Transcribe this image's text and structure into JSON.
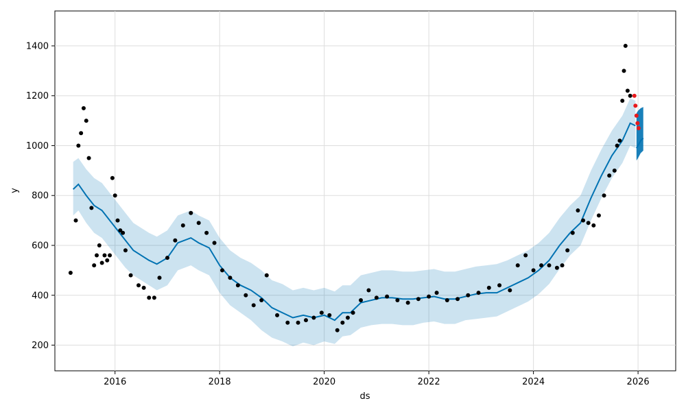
{
  "chart_data": {
    "type": "line",
    "title": "",
    "xlabel": "ds",
    "ylabel": "y",
    "xlim": [
      2014.85,
      2026.72
    ],
    "ylim": [
      97,
      1540
    ],
    "x_ticks": [
      2016,
      2018,
      2020,
      2022,
      2024,
      2026
    ],
    "x_tick_labels": [
      "2016",
      "2018",
      "2020",
      "2022",
      "2024",
      "2026"
    ],
    "y_ticks": [
      200,
      400,
      600,
      800,
      1000,
      1200,
      1400
    ],
    "y_tick_labels": [
      "200",
      "400",
      "600",
      "800",
      "1000",
      "1200",
      "1400"
    ],
    "grid": true,
    "legend": "none",
    "colors": {
      "forecast_line": "#0072b2",
      "uncertainty_band": "#0072b2",
      "observed_points": "#000000",
      "recent_points": "#e8191c",
      "grid": "#dddddd"
    },
    "series": [
      {
        "kind": "forecast",
        "x": [
          2015.2,
          2015.3,
          2015.45,
          2015.6,
          2015.75,
          2015.9,
          2016.05,
          2016.2,
          2016.35,
          2016.5,
          2016.65,
          2016.8,
          2017.0,
          2017.2,
          2017.45,
          2017.6,
          2017.8,
          2018.0,
          2018.2,
          2018.4,
          2018.6,
          2018.8,
          2019.0,
          2019.2,
          2019.4,
          2019.6,
          2019.8,
          2020.0,
          2020.2,
          2020.35,
          2020.5,
          2020.7,
          2020.9,
          2021.1,
          2021.3,
          2021.5,
          2021.7,
          2021.9,
          2022.1,
          2022.3,
          2022.5,
          2022.7,
          2022.9,
          2023.1,
          2023.3,
          2023.5,
          2023.7,
          2023.9,
          2024.1,
          2024.3,
          2024.5,
          2024.7,
          2024.9,
          2025.1,
          2025.3,
          2025.5,
          2025.7,
          2025.85,
          2025.95
        ],
        "y": [
          825,
          845,
          800,
          760,
          740,
          700,
          660,
          620,
          580,
          560,
          540,
          525,
          550,
          610,
          630,
          610,
          590,
          520,
          470,
          440,
          420,
          390,
          350,
          330,
          310,
          320,
          310,
          320,
          300,
          330,
          330,
          370,
          380,
          390,
          390,
          385,
          385,
          390,
          395,
          385,
          385,
          395,
          405,
          410,
          410,
          430,
          450,
          470,
          500,
          540,
          600,
          650,
          690,
          790,
          880,
          960,
          1020,
          1090,
          1080
        ],
        "lower": [
          720,
          740,
          690,
          650,
          630,
          590,
          550,
          510,
          480,
          460,
          440,
          420,
          440,
          500,
          520,
          500,
          480,
          410,
          360,
          330,
          300,
          260,
          230,
          215,
          195,
          210,
          200,
          215,
          205,
          235,
          240,
          270,
          280,
          285,
          285,
          280,
          280,
          290,
          295,
          285,
          285,
          300,
          305,
          310,
          315,
          335,
          355,
          375,
          405,
          445,
          505,
          560,
          600,
          700,
          790,
          870,
          930,
          1000,
          990
        ],
        "upper": [
          935,
          950,
          905,
          870,
          850,
          810,
          770,
          730,
          690,
          670,
          650,
          635,
          660,
          720,
          740,
          720,
          700,
          630,
          580,
          550,
          530,
          500,
          460,
          445,
          420,
          430,
          420,
          430,
          415,
          440,
          440,
          480,
          490,
          500,
          500,
          495,
          495,
          500,
          505,
          495,
          495,
          505,
          515,
          520,
          525,
          540,
          560,
          580,
          610,
          650,
          710,
          760,
          800,
          900,
          985,
          1060,
          1120,
          1190,
          1180
        ]
      },
      {
        "kind": "future_forecast",
        "x": [
          2025.97,
          2026.0,
          2026.05,
          2026.1
        ],
        "y": [
          990,
          1000,
          1020,
          1030
        ],
        "lower": [
          940,
          950,
          970,
          980
        ],
        "upper": [
          1130,
          1140,
          1150,
          1155
        ]
      },
      {
        "kind": "observed",
        "x": [
          2015.15,
          2015.25,
          2015.3,
          2015.35,
          2015.4,
          2015.45,
          2015.5,
          2015.55,
          2015.6,
          2015.65,
          2015.7,
          2015.75,
          2015.8,
          2015.85,
          2015.9,
          2015.95,
          2016.0,
          2016.05,
          2016.1,
          2016.15,
          2016.2,
          2016.3,
          2016.45,
          2016.55,
          2016.65,
          2016.75,
          2016.85,
          2017.0,
          2017.15,
          2017.3,
          2017.45,
          2017.6,
          2017.75,
          2017.9,
          2018.05,
          2018.2,
          2018.35,
          2018.5,
          2018.65,
          2018.8,
          2018.9,
          2019.1,
          2019.3,
          2019.5,
          2019.65,
          2019.8,
          2019.95,
          2020.1,
          2020.25,
          2020.35,
          2020.45,
          2020.55,
          2020.7,
          2020.85,
          2021.0,
          2021.2,
          2021.4,
          2021.6,
          2021.8,
          2022.0,
          2022.15,
          2022.35,
          2022.55,
          2022.75,
          2022.95,
          2023.15,
          2023.35,
          2023.55,
          2023.7,
          2023.85,
          2024.0,
          2024.15,
          2024.3,
          2024.45,
          2024.55,
          2024.65,
          2024.75,
          2024.85,
          2024.95,
          2025.05,
          2025.15,
          2025.25,
          2025.35,
          2025.45,
          2025.55,
          2025.6,
          2025.65,
          2025.7,
          2025.73,
          2025.76,
          2025.8,
          2025.85
        ],
        "y": [
          490,
          700,
          1000,
          1050,
          1150,
          1100,
          950,
          750,
          520,
          560,
          600,
          530,
          560,
          540,
          560,
          870,
          800,
          700,
          660,
          650,
          580,
          480,
          440,
          430,
          390,
          390,
          470,
          550,
          620,
          680,
          730,
          690,
          650,
          610,
          500,
          470,
          440,
          400,
          360,
          380,
          480,
          320,
          290,
          290,
          300,
          310,
          330,
          320,
          260,
          290,
          310,
          330,
          380,
          420,
          390,
          395,
          380,
          370,
          385,
          395,
          410,
          380,
          385,
          400,
          410,
          430,
          440,
          420,
          520,
          560,
          500,
          520,
          520,
          510,
          520,
          580,
          650,
          740,
          700,
          690,
          680,
          720,
          800,
          880,
          900,
          1000,
          1020,
          1180,
          1300,
          1400,
          1220,
          1200
        ],
        "recent_x": [
          2025.93,
          2025.95,
          2025.97,
          2025.99,
          2026.01
        ],
        "recent_y": [
          1200,
          1160,
          1120,
          1090,
          1070
        ]
      }
    ]
  }
}
